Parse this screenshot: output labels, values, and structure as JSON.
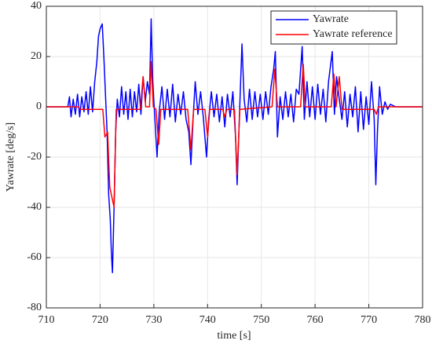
{
  "chart_data": {
    "type": "line",
    "xlabel": "time [s]",
    "ylabel": "Yawrate [deg/s]",
    "xlim": [
      710,
      780
    ],
    "xticks": [
      710,
      720,
      730,
      740,
      750,
      760,
      770,
      780
    ],
    "ylim": [
      -80,
      40
    ],
    "yticks": [
      -80,
      -60,
      -40,
      -20,
      0,
      20,
      40
    ],
    "grid": true,
    "legend": "upper right",
    "series": [
      {
        "name": "Yawrate",
        "color": "#0000ff",
        "x": [
          710,
          714,
          714.3,
          714.6,
          715,
          715.4,
          715.8,
          716.2,
          716.6,
          717,
          717.4,
          717.8,
          718.2,
          718.6,
          719,
          719.4,
          719.7,
          720,
          720.4,
          720.7,
          721,
          721.3,
          721.6,
          721.9,
          722.1,
          722.3,
          722.6,
          722.9,
          723.2,
          723.6,
          724,
          724.4,
          724.8,
          725.2,
          725.6,
          726,
          726.4,
          726.8,
          727.2,
          727.6,
          728,
          728.4,
          728.8,
          729.2,
          729.5,
          729.8,
          730.2,
          730.6,
          731,
          731.5,
          732,
          732.5,
          733,
          733.5,
          734,
          734.5,
          735,
          735.5,
          736,
          736.5,
          736.9,
          737.3,
          737.7,
          738.2,
          738.7,
          739.2,
          739.8,
          740.2,
          740.7,
          741.2,
          741.7,
          742.2,
          742.7,
          743.2,
          743.7,
          744.2,
          744.7,
          745.2,
          745.5,
          745.9,
          746.4,
          746.8,
          747.3,
          747.8,
          748.3,
          748.8,
          749.3,
          749.8,
          750.3,
          750.8,
          751.3,
          751.8,
          752.3,
          752.6,
          753,
          753.5,
          754,
          754.5,
          755,
          755.5,
          756,
          756.5,
          757,
          757.6,
          758,
          758.5,
          759,
          759.5,
          760,
          760.5,
          761,
          761.5,
          762,
          762.5,
          763.2,
          763.6,
          764,
          764.5,
          765,
          765.5,
          766,
          766.5,
          767,
          767.5,
          768,
          768.5,
          769,
          769.5,
          770,
          770.5,
          771,
          771.3,
          771.6,
          772,
          772.5,
          773,
          773.5,
          774,
          775,
          780
        ],
        "values": [
          0,
          0,
          4,
          -4,
          3,
          -3,
          5,
          -4,
          4,
          -2,
          6,
          -3,
          8,
          -2,
          10,
          18,
          28,
          31,
          33,
          20,
          5,
          -10,
          -35,
          -45,
          -58,
          -66,
          -40,
          -10,
          3,
          -4,
          8,
          -3,
          6,
          -5,
          7,
          -4,
          6,
          -2,
          9,
          -3,
          12,
          2,
          10,
          5,
          35,
          10,
          -5,
          -20,
          -2,
          8,
          -5,
          7,
          -4,
          9,
          -6,
          5,
          -3,
          6,
          -5,
          -10,
          -23,
          -5,
          10,
          -3,
          6,
          -4,
          -20,
          -5,
          6,
          -4,
          5,
          -6,
          4,
          -8,
          5,
          -4,
          6,
          -12,
          -31,
          -5,
          25,
          3,
          -6,
          7,
          -5,
          6,
          -4,
          5,
          -5,
          6,
          -3,
          8,
          15,
          22,
          -12,
          4,
          -5,
          6,
          -4,
          5,
          -6,
          7,
          5,
          24,
          -5,
          10,
          -4,
          8,
          -5,
          9,
          -3,
          7,
          -6,
          10,
          22,
          -3,
          12,
          3,
          -5,
          6,
          -8,
          5,
          -4,
          8,
          -10,
          6,
          -9,
          4,
          -7,
          10,
          -5,
          -31,
          -10,
          8,
          -3,
          2,
          -1,
          1,
          0,
          0
        ]
      },
      {
        "name": "Yawrate reference",
        "color": "#ff0000",
        "x": [
          710,
          716,
          716.3,
          720.5,
          720.9,
          721.4,
          721.8,
          722.6,
          723,
          727.5,
          728,
          728.5,
          729.2,
          729.5,
          729.9,
          730.4,
          730.9,
          731.3,
          736.3,
          736.9,
          737.4,
          739.5,
          740,
          740.4,
          742.8,
          743.2,
          743.6,
          745,
          745.5,
          746,
          752,
          752.5,
          753,
          757.3,
          757.8,
          758.2,
          763,
          763.5,
          763.9,
          764.5,
          765,
          771,
          771.4,
          771.8,
          780
        ],
        "values": [
          0,
          0,
          -1,
          -1,
          -12,
          -10,
          -32,
          -40,
          -1,
          -1,
          12,
          0,
          0,
          18,
          0,
          -1,
          -15,
          -1,
          -1,
          -17,
          -1,
          -1,
          -12,
          -1,
          -1,
          -4,
          -1,
          -1,
          -27,
          -1,
          0,
          15,
          0,
          0,
          17,
          0,
          0,
          13,
          0,
          12,
          -1,
          -1,
          -3,
          0,
          0
        ]
      }
    ]
  }
}
